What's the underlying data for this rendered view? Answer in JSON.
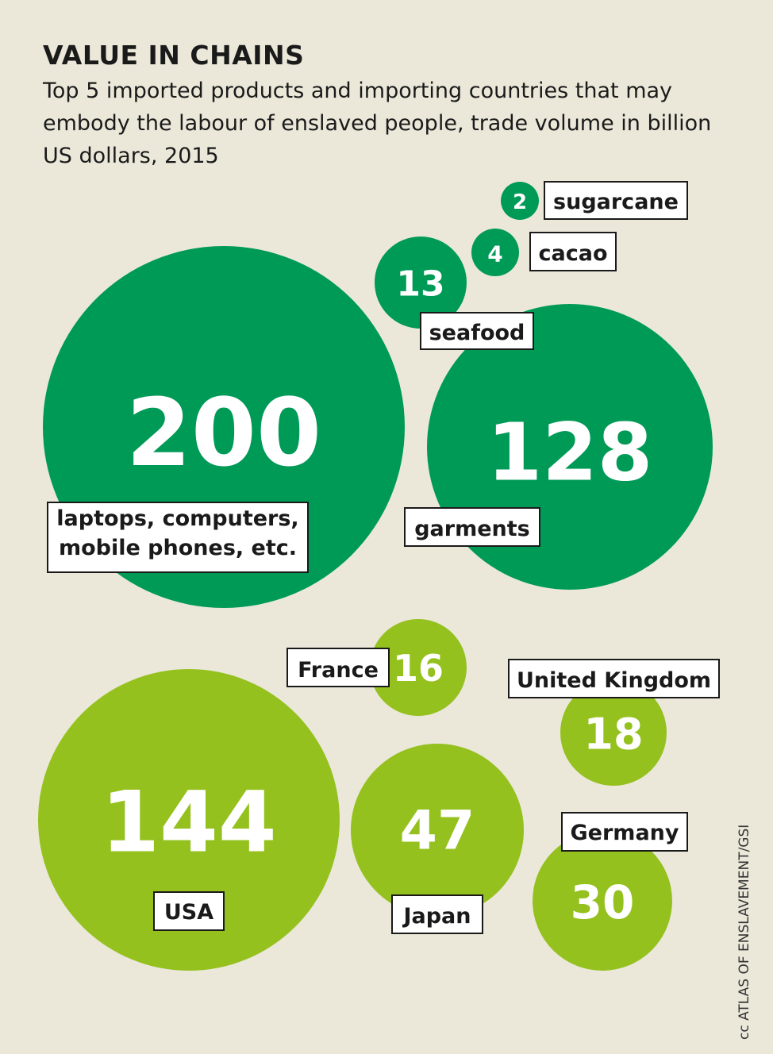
{
  "chart_data": {
    "type": "bubble",
    "title": "VALUE IN CHAINS",
    "subtitle": "Top 5 imported products and importing countries that may embody the labour of enslaved people, trade volume in billion US dollars, 2015",
    "unit": "billion US dollars",
    "year": "2015",
    "series": [
      {
        "name": "products",
        "color": "#009a57",
        "items": [
          {
            "label": [
              "laptops, computers,",
              "mobile phones, etc."
            ],
            "value": 200
          },
          {
            "label": [
              "garments"
            ],
            "value": 128
          },
          {
            "label": [
              "seafood"
            ],
            "value": 13
          },
          {
            "label": [
              "cacao"
            ],
            "value": 4
          },
          {
            "label": [
              "sugarcane"
            ],
            "value": 2
          }
        ]
      },
      {
        "name": "countries",
        "color": "#95c11f",
        "items": [
          {
            "label": [
              "USA"
            ],
            "value": 144
          },
          {
            "label": [
              "Japan"
            ],
            "value": 47
          },
          {
            "label": [
              "Germany"
            ],
            "value": 30
          },
          {
            "label": [
              "United Kingdom"
            ],
            "value": 18
          },
          {
            "label": [
              "France"
            ],
            "value": 16
          }
        ]
      }
    ]
  },
  "credit": "cc ATLAS OF ENSLAVEMENT/GSI"
}
